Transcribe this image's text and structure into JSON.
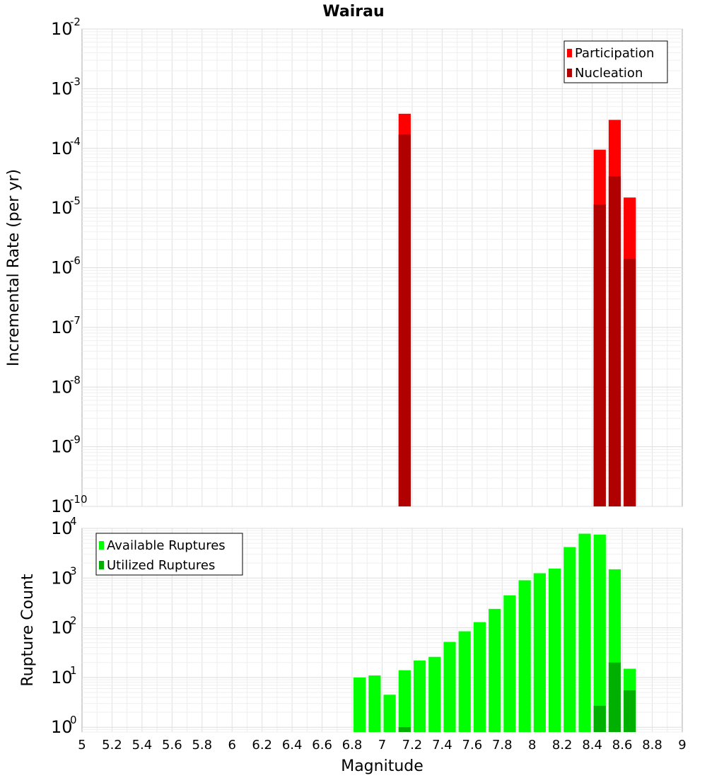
{
  "chart_data": [
    {
      "type": "bar",
      "title": "Wairau",
      "xlabel": "",
      "ylabel": "Incremental Rate (per yr)",
      "yscale": "log",
      "xlim": [
        5,
        9
      ],
      "ylim": [
        1e-10,
        0.01
      ],
      "grid": true,
      "legend_position": "top-right",
      "y_ticks": [
        {
          "base": "10",
          "exp": "-10"
        },
        {
          "base": "10",
          "exp": "-9"
        },
        {
          "base": "10",
          "exp": "-8"
        },
        {
          "base": "10",
          "exp": "-7"
        },
        {
          "base": "10",
          "exp": "-6"
        },
        {
          "base": "10",
          "exp": "-5"
        },
        {
          "base": "10",
          "exp": "-4"
        },
        {
          "base": "10",
          "exp": "-3"
        },
        {
          "base": "10",
          "exp": "-2"
        }
      ],
      "series": [
        {
          "name": "Participation",
          "color": "#ff0000",
          "points": [
            [
              7.15,
              0.00038
            ],
            [
              8.45,
              9.5e-05
            ],
            [
              8.55,
              0.0003
            ],
            [
              8.65,
              1.5e-05
            ]
          ]
        },
        {
          "name": "Nucleation",
          "color": "#b00000",
          "points": [
            [
              7.15,
              0.00017
            ],
            [
              8.45,
              1.15e-05
            ],
            [
              8.55,
              3.4e-05
            ],
            [
              8.65,
              1.4e-06
            ]
          ]
        }
      ]
    },
    {
      "type": "bar",
      "title": "",
      "xlabel": "Magnitude",
      "ylabel": "Rupture Count",
      "yscale": "log",
      "xlim": [
        5,
        9
      ],
      "ylim": [
        0.8,
        10000
      ],
      "grid": true,
      "legend_position": "top-left",
      "x_ticks": [
        "5",
        "5.2",
        "5.4",
        "5.6",
        "5.8",
        "6",
        "6.2",
        "6.4",
        "6.6",
        "6.8",
        "7",
        "7.2",
        "7.4",
        "7.6",
        "7.8",
        "8",
        "8.2",
        "8.4",
        "8.6",
        "8.8",
        "9"
      ],
      "y_ticks": [
        {
          "base": "10",
          "exp": "0"
        },
        {
          "base": "10",
          "exp": "1"
        },
        {
          "base": "10",
          "exp": "2"
        },
        {
          "base": "10",
          "exp": "3"
        },
        {
          "base": "10",
          "exp": "4"
        }
      ],
      "series": [
        {
          "name": "Available Ruptures",
          "color": "#00ff00",
          "points": [
            [
              6.85,
              10
            ],
            [
              6.95,
              11
            ],
            [
              7.05,
              4.5
            ],
            [
              7.15,
              14
            ],
            [
              7.25,
              22
            ],
            [
              7.35,
              26
            ],
            [
              7.45,
              52
            ],
            [
              7.55,
              85
            ],
            [
              7.65,
              130
            ],
            [
              7.75,
              240
            ],
            [
              7.85,
              450
            ],
            [
              7.95,
              900
            ],
            [
              8.05,
              1250
            ],
            [
              8.15,
              1550
            ],
            [
              8.25,
              4200
            ],
            [
              8.35,
              7800
            ],
            [
              8.45,
              7500
            ],
            [
              8.55,
              1500
            ],
            [
              8.65,
              15
            ]
          ]
        },
        {
          "name": "Utilized Ruptures",
          "color": "#00b000",
          "points": [
            [
              7.15,
              1
            ],
            [
              8.45,
              2.7
            ],
            [
              8.55,
              20
            ],
            [
              8.65,
              5.5
            ]
          ]
        }
      ]
    }
  ]
}
